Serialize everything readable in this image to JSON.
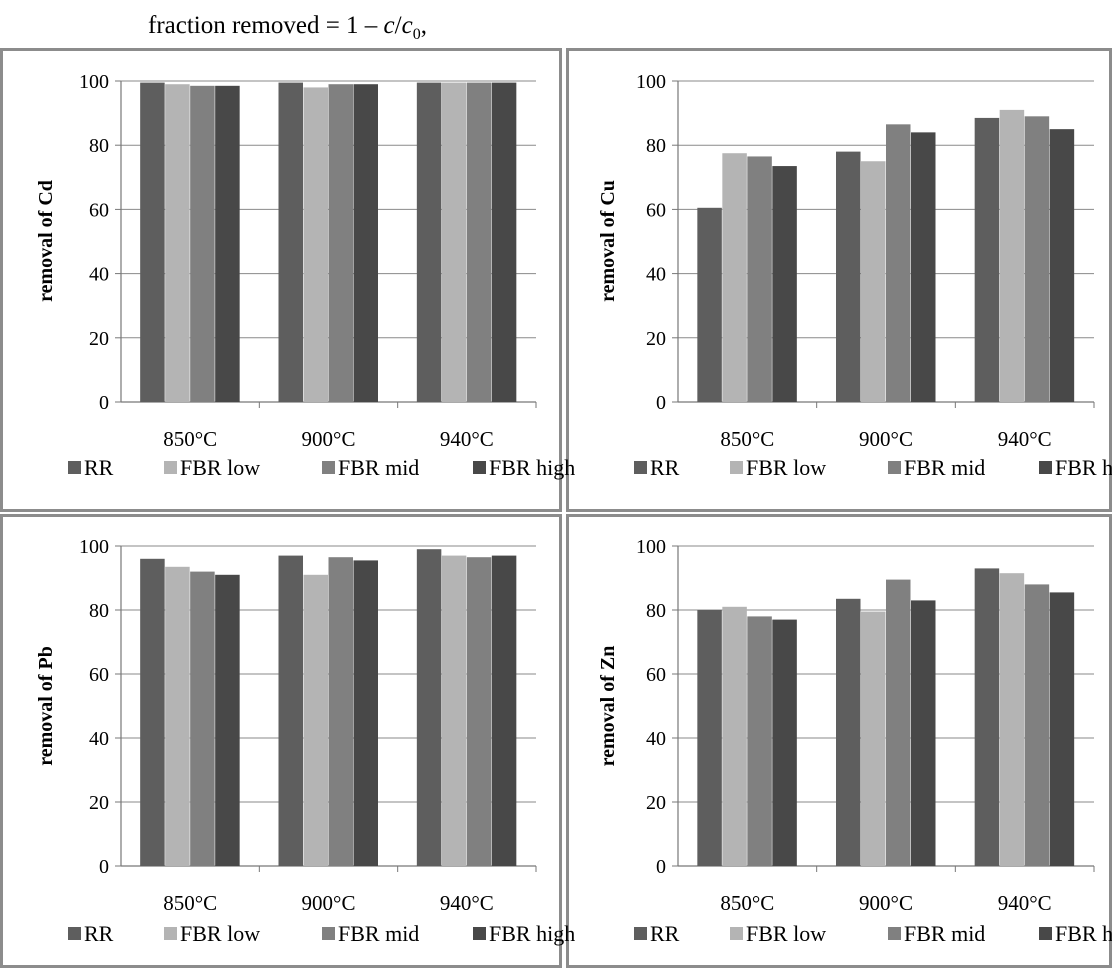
{
  "caption": {
    "prefix": "fraction removed = 1 – ",
    "c": "c",
    "slash": "/",
    "c0": "c",
    "sub0": "0",
    "suffix": ","
  },
  "colors": {
    "RR": "#5e5e5e",
    "FBR low": "#b4b4b4",
    "FBR mid": "#808080",
    "FBR high": "#484848",
    "grid": "#8a8a8a",
    "frame": "#8c8c8c"
  },
  "chart_data": [
    {
      "type": "bar",
      "ylabel": "removal of Cd",
      "categories": [
        "850°C",
        "900°C",
        "940°C"
      ],
      "ylim": [
        0,
        100
      ],
      "yticks": [
        0,
        20,
        40,
        60,
        80,
        100
      ],
      "grid": true,
      "legend": "bottom",
      "series": [
        {
          "name": "RR",
          "values": [
            99.5,
            99.5,
            99.5
          ]
        },
        {
          "name": "FBR low",
          "values": [
            99,
            98,
            99.5
          ]
        },
        {
          "name": "FBR mid",
          "values": [
            98.5,
            99,
            99.5
          ]
        },
        {
          "name": "FBR high",
          "values": [
            98.5,
            99,
            99.5
          ]
        }
      ]
    },
    {
      "type": "bar",
      "ylabel": "removal of Cu",
      "categories": [
        "850°C",
        "900°C",
        "940°C"
      ],
      "ylim": [
        0,
        100
      ],
      "yticks": [
        0,
        20,
        40,
        60,
        80,
        100
      ],
      "grid": true,
      "legend": "bottom",
      "series": [
        {
          "name": "RR",
          "values": [
            60.5,
            78,
            88.5
          ]
        },
        {
          "name": "FBR low",
          "values": [
            77.5,
            75,
            91
          ]
        },
        {
          "name": "FBR mid",
          "values": [
            76.5,
            86.5,
            89
          ]
        },
        {
          "name": "FBR high",
          "values": [
            73.5,
            84,
            85
          ]
        }
      ]
    },
    {
      "type": "bar",
      "ylabel": "removal of Pb",
      "categories": [
        "850°C",
        "900°C",
        "940°C"
      ],
      "ylim": [
        0,
        100
      ],
      "yticks": [
        0,
        20,
        40,
        60,
        80,
        100
      ],
      "grid": true,
      "legend": "bottom",
      "series": [
        {
          "name": "RR",
          "values": [
            96,
            97,
            99
          ]
        },
        {
          "name": "FBR low",
          "values": [
            93.5,
            91,
            97
          ]
        },
        {
          "name": "FBR mid",
          "values": [
            92,
            96.5,
            96.5
          ]
        },
        {
          "name": "FBR high",
          "values": [
            91,
            95.5,
            97
          ]
        }
      ]
    },
    {
      "type": "bar",
      "ylabel": "removal of Zn",
      "categories": [
        "850°C",
        "900°C",
        "940°C"
      ],
      "ylim": [
        0,
        100
      ],
      "yticks": [
        0,
        20,
        40,
        60,
        80,
        100
      ],
      "grid": true,
      "legend": "bottom",
      "series": [
        {
          "name": "RR",
          "values": [
            80,
            83.5,
            93
          ]
        },
        {
          "name": "FBR low",
          "values": [
            81,
            79.5,
            91.5
          ]
        },
        {
          "name": "FBR mid",
          "values": [
            78,
            89.5,
            88
          ]
        },
        {
          "name": "FBR high",
          "values": [
            77,
            83,
            85.5
          ]
        }
      ]
    }
  ]
}
